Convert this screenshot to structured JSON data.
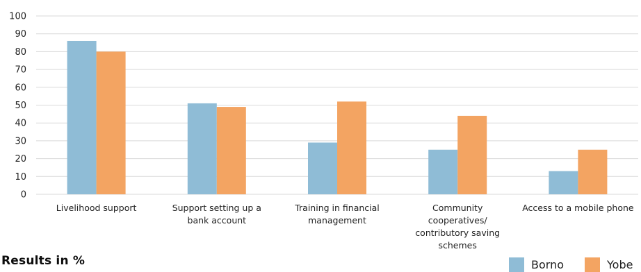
{
  "chart_data": {
    "type": "bar",
    "title": "",
    "xlabel": "",
    "ylabel": "",
    "ylim": [
      0,
      100
    ],
    "yticks": [
      0,
      10,
      20,
      30,
      40,
      50,
      60,
      70,
      80,
      90,
      100
    ],
    "grid": true,
    "categories": [
      "Livelihood support",
      "Support setting up a bank account",
      "Training in financial management",
      "Community cooperatives/ contributory saving schemes",
      "Access to a mobile phone"
    ],
    "category_label_lines": [
      [
        "Livelihood support"
      ],
      [
        "Support setting up a",
        "bank account"
      ],
      [
        "Training in financial",
        "management"
      ],
      [
        "Community",
        "cooperatives/",
        "contributory saving",
        "schemes"
      ],
      [
        "Access to a mobile phone"
      ]
    ],
    "series": [
      {
        "name": "Borno",
        "color": "#8fbcd6",
        "values": [
          86,
          51,
          29,
          25,
          13
        ]
      },
      {
        "name": "Yobe",
        "color": "#f3a462",
        "values": [
          80,
          49,
          52,
          44,
          25
        ]
      }
    ],
    "legend_position": "bottom-right"
  },
  "footer": {
    "results_label": "Results in %"
  },
  "colors": {
    "gridline": "#d9d9d9",
    "text": "#222222"
  }
}
